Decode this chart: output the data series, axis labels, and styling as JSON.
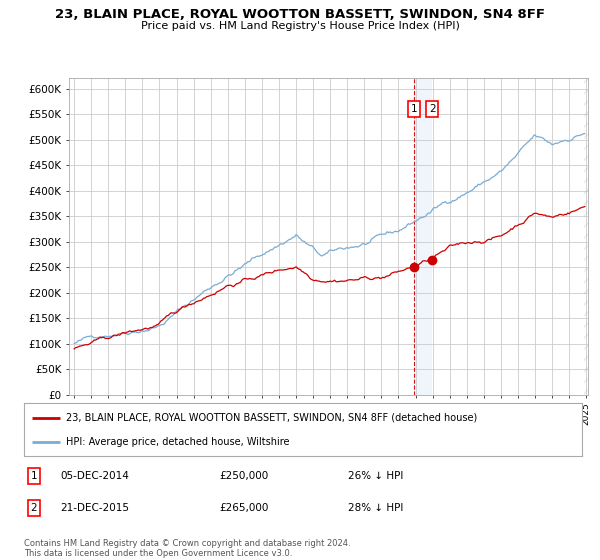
{
  "title": "23, BLAIN PLACE, ROYAL WOOTTON BASSETT, SWINDON, SN4 8FF",
  "subtitle": "Price paid vs. HM Land Registry's House Price Index (HPI)",
  "ylabel_ticks": [
    "£0",
    "£50K",
    "£100K",
    "£150K",
    "£200K",
    "£250K",
    "£300K",
    "£350K",
    "£400K",
    "£450K",
    "£500K",
    "£550K",
    "£600K"
  ],
  "ylim": [
    0,
    620000
  ],
  "hpi_color": "#7aadd4",
  "price_color": "#cc0000",
  "legend1": "23, BLAIN PLACE, ROYAL WOOTTON BASSETT, SWINDON, SN4 8FF (detached house)",
  "legend2": "HPI: Average price, detached house, Wiltshire",
  "sale1_date": "05-DEC-2014",
  "sale1_price": "£250,000",
  "sale1_pct": "26% ↓ HPI",
  "sale2_date": "21-DEC-2015",
  "sale2_price": "£265,000",
  "sale2_pct": "28% ↓ HPI",
  "footnote": "Contains HM Land Registry data © Crown copyright and database right 2024.\nThis data is licensed under the Open Government Licence v3.0.",
  "background_color": "#ffffff",
  "grid_color": "#cccccc",
  "sale1_year": 2014.92,
  "sale2_year": 2015.97,
  "vline_color": "#cc0000",
  "highlight_color": "#ddeeff",
  "hatch_color": "#bbbbbb"
}
